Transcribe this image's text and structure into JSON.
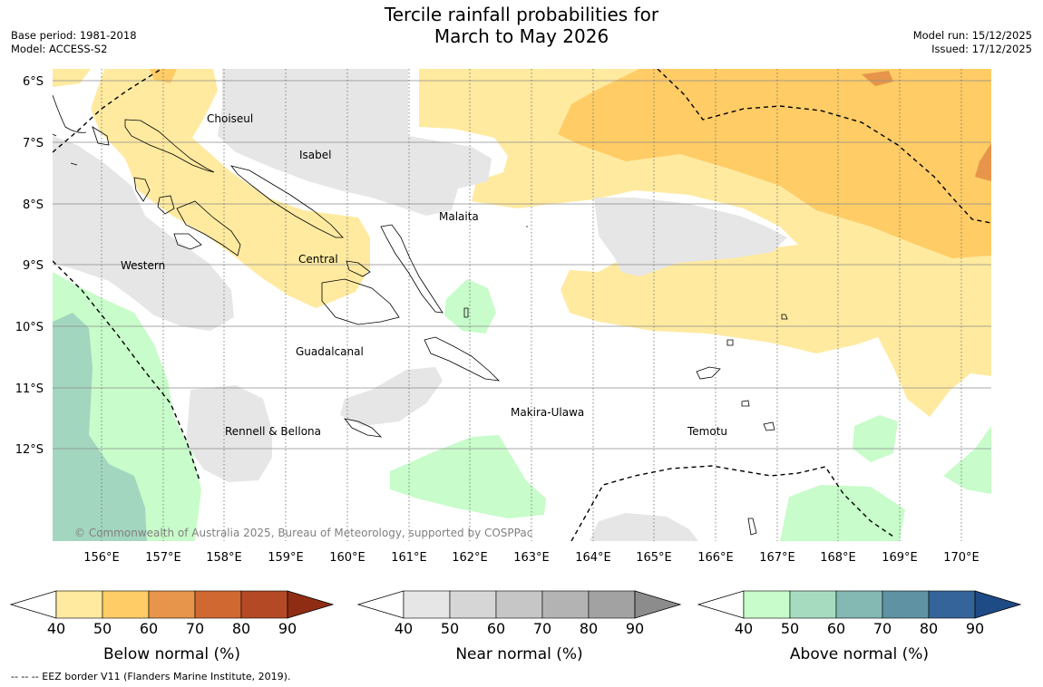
{
  "header": {
    "title_line1": "Tercile rainfall probabilities for",
    "title_line2": "March to May 2026",
    "base_period": "Base period: 1981-2018",
    "model": "Model: ACCESS-S2",
    "model_run": "Model run: 15/12/2025",
    "issued": "Issued: 17/12/2025"
  },
  "map": {
    "lat_labels": [
      "6°S",
      "7°S",
      "8°S",
      "9°S",
      "10°S",
      "11°S",
      "12°S"
    ],
    "lon_labels": [
      "156°E",
      "157°E",
      "158°E",
      "159°E",
      "160°E",
      "161°E",
      "162°E",
      "163°E",
      "164°E",
      "165°E",
      "166°E",
      "167°E",
      "168°E",
      "169°E",
      "170°E"
    ],
    "place_labels": {
      "choiseul": "Choiseul",
      "isabel": "Isabel",
      "malaita": "Malaita",
      "western": "Western",
      "central": "Central",
      "guadalcanal": "Guadalcanal",
      "makira": "Makira-Ulawa",
      "rennell": "Rennell & Bellona",
      "temotu": "Temotu"
    },
    "copyright": "© Commonwealth of Australia 2025, Bureau of Meteorology, supported by COSPPac"
  },
  "colorbars": [
    {
      "name": "below",
      "label": "Below normal (%)",
      "ticks": [
        "40",
        "50",
        "60",
        "70",
        "80",
        "90"
      ],
      "colors": [
        "#ffeaa0",
        "#ffcc66",
        "#e6954a",
        "#d06832",
        "#b44a25",
        "#8f2d14"
      ]
    },
    {
      "name": "near",
      "label": "Near normal (%)",
      "ticks": [
        "40",
        "50",
        "60",
        "70",
        "80",
        "90"
      ],
      "colors": [
        "#e6e6e6",
        "#d6d6d6",
        "#c6c6c6",
        "#b3b3b3",
        "#a2a2a2",
        "#8c8c8c"
      ]
    },
    {
      "name": "above",
      "label": "Above normal (%)",
      "ticks": [
        "40",
        "50",
        "60",
        "70",
        "80",
        "90"
      ],
      "colors": [
        "#c8fcca",
        "#a6dbbf",
        "#83b8b3",
        "#5f93a3",
        "#35649a",
        "#1e4a85"
      ]
    }
  ],
  "footnote": "--  --  -- EEZ border V11 (Flanders Marine Institute, 2019)."
}
